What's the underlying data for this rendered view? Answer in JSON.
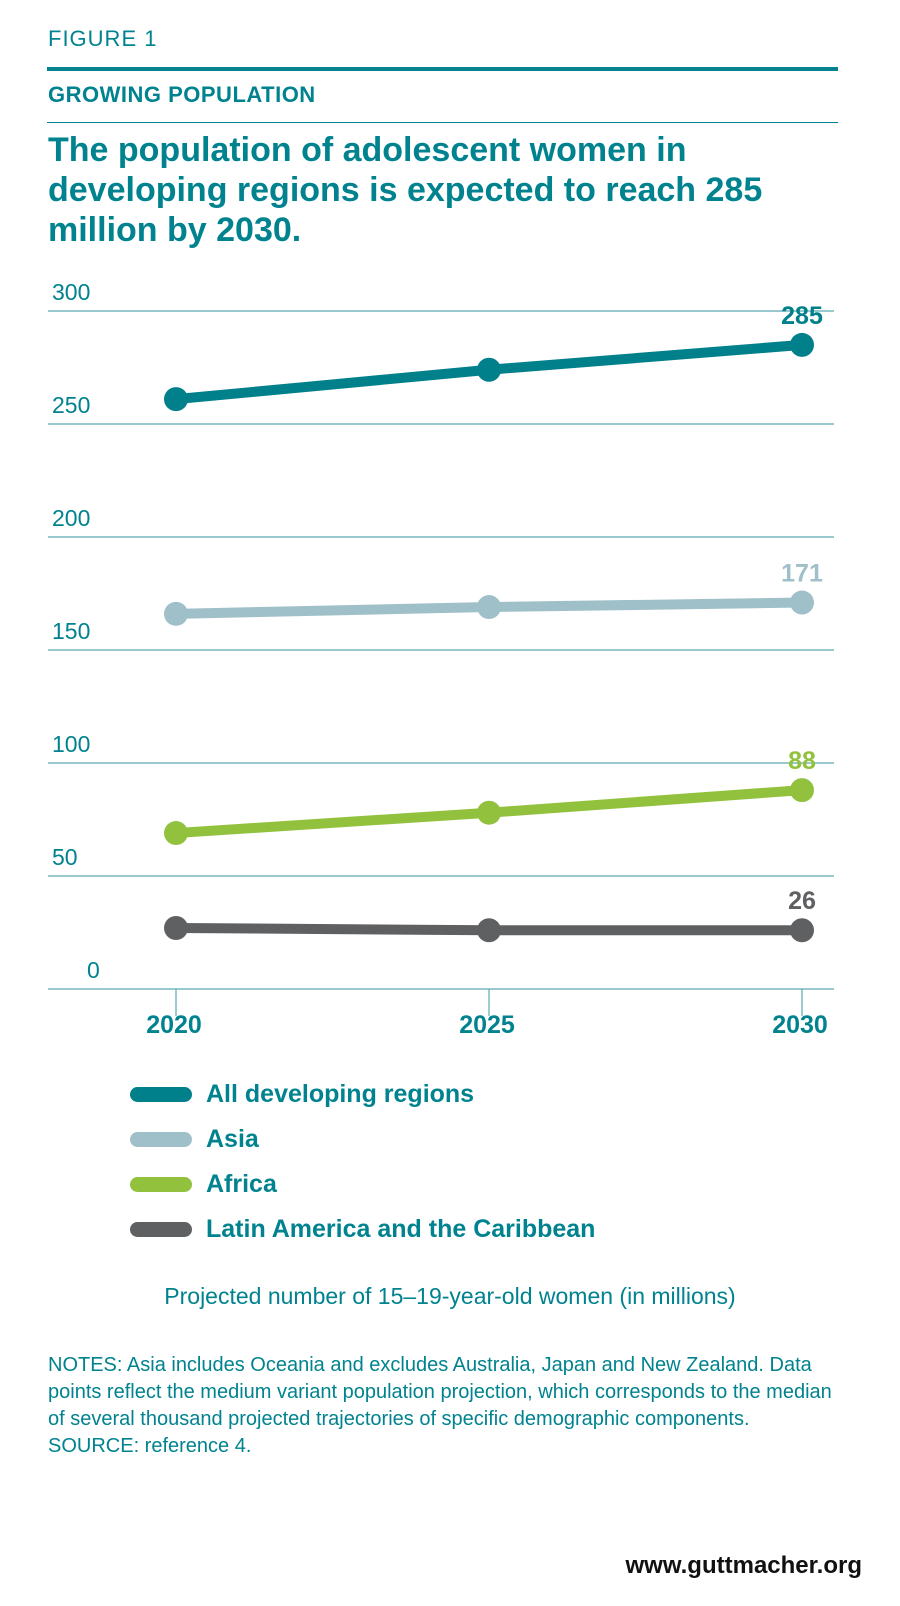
{
  "header": {
    "figure_label": "FIGURE 1",
    "kicker": "GROWING POPULATION",
    "title": "The population of adolescent women in developing regions is expected to reach 285 million by 2030."
  },
  "chart_data": {
    "type": "line",
    "x": [
      2020,
      2025,
      2030
    ],
    "x_tick_labels": [
      "2020",
      "2025",
      "2030"
    ],
    "y_ticks": [
      0,
      50,
      100,
      150,
      200,
      250,
      300
    ],
    "y_tick_labels": [
      "0",
      "50",
      "100",
      "150",
      "200",
      "250",
      "300"
    ],
    "ylim": [
      0,
      300
    ],
    "grid": true,
    "legend_placement": "bottom",
    "series": [
      {
        "name": "All developing regions",
        "values": [
          261,
          274,
          285
        ],
        "end_label": "285",
        "color": "#00808a"
      },
      {
        "name": "Asia",
        "values": [
          166,
          169,
          171
        ],
        "end_label": "171",
        "color": "#9fc0c8"
      },
      {
        "name": "Africa",
        "values": [
          69,
          78,
          88
        ],
        "end_label": "88",
        "color": "#92c13e"
      },
      {
        "name": "Latin America and the Caribbean",
        "values": [
          27,
          26,
          26
        ],
        "end_label": "26",
        "color": "#5f6062"
      }
    ],
    "xlabel": "",
    "ylabel": "Projected number of 15–19-year-old women (in millions)"
  },
  "notes": {
    "notes_label": "NOTES:",
    "notes_text": " Asia includes Oceania and excludes Australia, Japan and New Zealand. Data points reflect the medium variant population projection, which corresponds to the median of several thousand projected trajectories of specific demographic components.",
    "source_label": "SOURCE:",
    "source_text": " reference 4."
  },
  "footer": {
    "site": "www.guttmacher.org"
  },
  "colors": {
    "accent": "#00838f",
    "gridline": "#5aa9b0"
  }
}
